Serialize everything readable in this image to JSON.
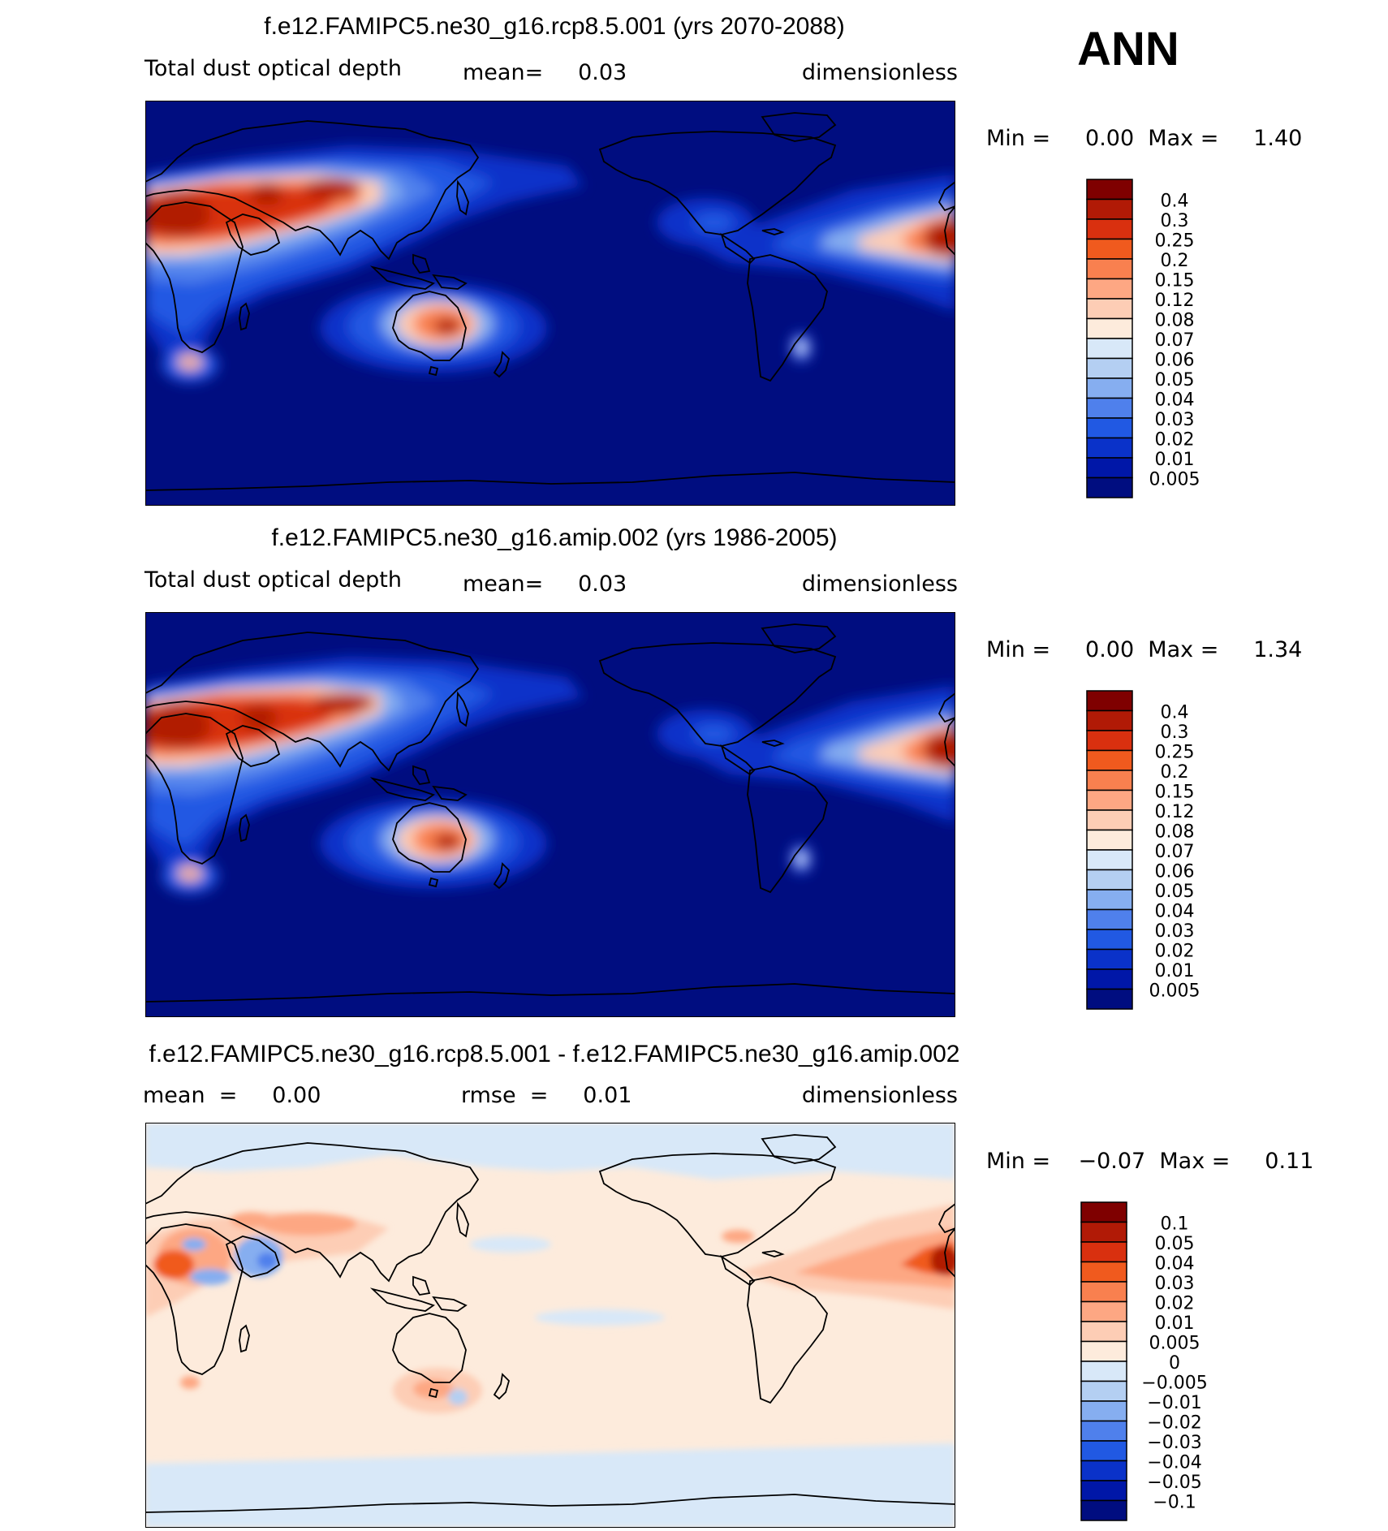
{
  "season": "ANN",
  "panels": [
    {
      "id": "rcp",
      "title": "f.e12.FAMIPC5.ne30_g16.rcp8.5.001 (yrs 2070-2088)",
      "variable": "Total dust optical depth",
      "stat": "mean=     0.03",
      "units": "dimensionless",
      "minmax": "Min =     0.00  Max =     1.40",
      "colorbar": {
        "levels": [
          "0.4",
          "0.3",
          "0.25",
          "0.2",
          "0.15",
          "0.12",
          "0.08",
          "0.07",
          "0.06",
          "0.05",
          "0.04",
          "0.03",
          "0.02",
          "0.01",
          "0.005"
        ],
        "colors": [
          "#7f0000",
          "#b11a06",
          "#d9300f",
          "#f05a1e",
          "#f9804f",
          "#fda783",
          "#fdcdb5",
          "#fdebdc",
          "#d8e8f8",
          "#b4cff2",
          "#86aef0",
          "#4f80ec",
          "#2159e3",
          "#0a32c9",
          "#0017a8",
          "#000d80"
        ]
      },
      "max_value": 1.4
    },
    {
      "id": "amip",
      "title": "f.e12.FAMIPC5.ne30_g16.amip.002 (yrs 1986-2005)",
      "variable": "Total dust optical depth",
      "stat": "mean=     0.03",
      "units": "dimensionless",
      "minmax": "Min =     0.00  Max =     1.34",
      "colorbar": {
        "levels": [
          "0.4",
          "0.3",
          "0.25",
          "0.2",
          "0.15",
          "0.12",
          "0.08",
          "0.07",
          "0.06",
          "0.05",
          "0.04",
          "0.03",
          "0.02",
          "0.01",
          "0.005"
        ],
        "colors": [
          "#7f0000",
          "#b11a06",
          "#d9300f",
          "#f05a1e",
          "#f9804f",
          "#fda783",
          "#fdcdb5",
          "#fdebdc",
          "#d8e8f8",
          "#b4cff2",
          "#86aef0",
          "#4f80ec",
          "#2159e3",
          "#0a32c9",
          "#0017a8",
          "#000d80"
        ]
      },
      "max_value": 1.34
    },
    {
      "id": "diff",
      "title": "f.e12.FAMIPC5.ne30_g16.rcp8.5.001 - f.e12.FAMIPC5.ne30_g16.amip.002",
      "stat_mean": "mean  =     0.00",
      "stat_rmse": "rmse  =     0.01",
      "units": "dimensionless",
      "minmax": "Min =    −0.07  Max =     0.11",
      "colorbar": {
        "levels": [
          "0.1",
          "0.05",
          "0.04",
          "0.03",
          "0.02",
          "0.01",
          "0.005",
          "0",
          "−0.005",
          "−0.01",
          "−0.02",
          "−0.03",
          "−0.04",
          "−0.05",
          "−0.1"
        ],
        "colors": [
          "#7f0000",
          "#b11a06",
          "#d9300f",
          "#f05a1e",
          "#f9804f",
          "#fda783",
          "#fdcdb5",
          "#fdebdc",
          "#d8e8f8",
          "#b4cff2",
          "#86aef0",
          "#4f80ec",
          "#2159e3",
          "#0a32c9",
          "#0017a8",
          "#000d80"
        ]
      },
      "min_value": -0.07,
      "max_value": 0.11
    }
  ],
  "map": {
    "projection": "cylindrical equidistant, centered on Pacific (central longitude ~180)",
    "land_outline_color": "#000000",
    "dust_field_colors": {
      "background": "#000d80",
      "ocean_low": "#0017a8"
    },
    "diff_field_colors": {
      "background": "#fdebdc",
      "high_latitude": "#d8e8f8"
    }
  }
}
